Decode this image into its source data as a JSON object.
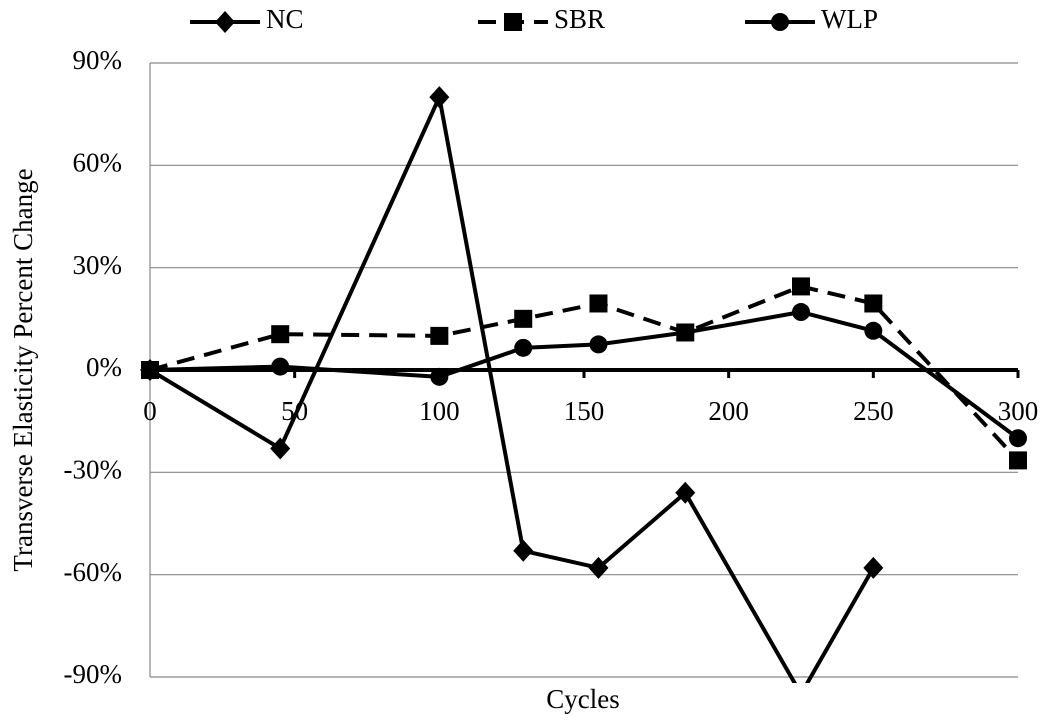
{
  "chart_data": {
    "type": "line",
    "x_label": "Cycles",
    "y_label": "Transverse Elasticity Percent Change",
    "x": [
      0,
      45,
      100,
      129,
      155,
      185,
      225,
      250,
      300
    ],
    "xlim": [
      0,
      300
    ],
    "xticks": [
      0,
      50,
      100,
      150,
      200,
      250,
      300
    ],
    "ylim": [
      -90,
      90
    ],
    "yticks": [
      {
        "value": -90,
        "label": "-90%"
      },
      {
        "value": -60,
        "label": "-60%"
      },
      {
        "value": -30,
        "label": "-30%"
      },
      {
        "value": 0,
        "label": "0%"
      },
      {
        "value": 30,
        "label": "30%"
      },
      {
        "value": 60,
        "label": "60%"
      },
      {
        "value": 90,
        "label": "90%"
      }
    ],
    "grid": true,
    "legend": "top",
    "series": [
      {
        "name": "NC",
        "color": "#000000",
        "marker": "diamond",
        "dashed": false,
        "values": [
          0,
          -23,
          80,
          -53,
          -58,
          -36,
          -95,
          -58,
          null
        ]
      },
      {
        "name": "SBR",
        "color": "#000000",
        "marker": "square",
        "dashed": true,
        "values": [
          0,
          10.5,
          10,
          15,
          19.5,
          11,
          24.5,
          19.5,
          -26.5
        ]
      },
      {
        "name": "WLP",
        "color": "#000000",
        "marker": "circle",
        "dashed": false,
        "values": [
          0,
          1,
          -2,
          6.5,
          7.5,
          11,
          17,
          11.5,
          -20
        ]
      }
    ]
  }
}
